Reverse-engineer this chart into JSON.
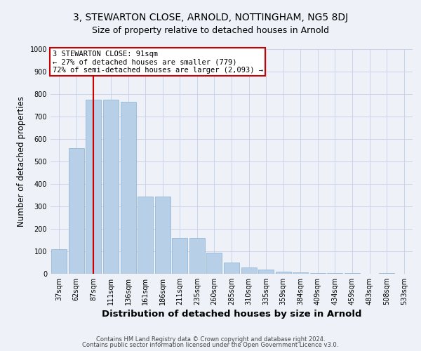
{
  "title1": "3, STEWARTON CLOSE, ARNOLD, NOTTINGHAM, NG5 8DJ",
  "title2": "Size of property relative to detached houses in Arnold",
  "xlabel": "Distribution of detached houses by size in Arnold",
  "ylabel": "Number of detached properties",
  "bar_labels": [
    "37sqm",
    "62sqm",
    "87sqm",
    "111sqm",
    "136sqm",
    "161sqm",
    "186sqm",
    "211sqm",
    "235sqm",
    "260sqm",
    "285sqm",
    "310sqm",
    "335sqm",
    "359sqm",
    "384sqm",
    "409sqm",
    "434sqm",
    "459sqm",
    "483sqm",
    "508sqm",
    "533sqm"
  ],
  "bar_values": [
    110,
    560,
    775,
    775,
    765,
    345,
    345,
    160,
    160,
    95,
    50,
    28,
    18,
    10,
    5,
    4,
    4,
    3,
    0,
    3,
    0
  ],
  "bar_color": "#b8cfe8",
  "bar_edge_color": "#8ab0d0",
  "grid_color": "#c8d4e8",
  "background_color": "#eef2f8",
  "vline_x_index": 2.0,
  "vline_color": "#cc0000",
  "annotation_text": "3 STEWARTON CLOSE: 91sqm\n← 27% of detached houses are smaller (779)\n72% of semi-detached houses are larger (2,093) →",
  "annotation_box_color": "#cc0000",
  "annotation_text_color": "#000000",
  "ylim": [
    0,
    1000
  ],
  "yticks": [
    0,
    100,
    200,
    300,
    400,
    500,
    600,
    700,
    800,
    900,
    1000
  ],
  "footer1": "Contains HM Land Registry data © Crown copyright and database right 2024.",
  "footer2": "Contains public sector information licensed under the Open Government Licence v3.0.",
  "title1_fontsize": 10,
  "title2_fontsize": 9,
  "tick_fontsize": 7,
  "ylabel_fontsize": 8.5,
  "xlabel_fontsize": 9.5,
  "footer_fontsize": 6,
  "annot_fontsize": 7.5
}
